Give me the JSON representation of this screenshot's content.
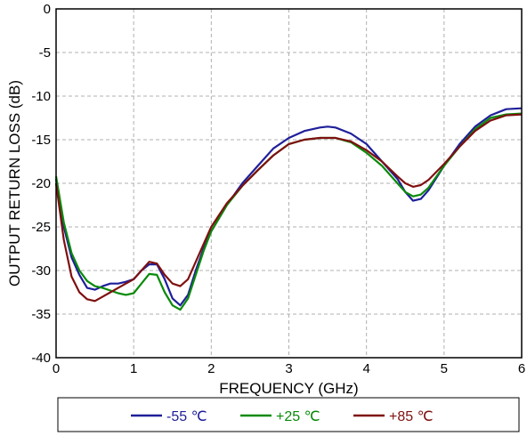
{
  "chart_data": {
    "type": "line",
    "xlabel": "FREQUENCY (GHz)",
    "ylabel": "OUTPUT RETURN LOSS (dB)",
    "xlim": [
      0,
      6
    ],
    "ylim": [
      -40,
      0
    ],
    "xticks": [
      0,
      1,
      2,
      3,
      4,
      5,
      6
    ],
    "yticks": [
      0,
      -5,
      -10,
      -15,
      -20,
      -25,
      -30,
      -35,
      -40
    ],
    "grid": true,
    "legend_position": "bottom",
    "series": [
      {
        "name": "-55 ℃",
        "color": "#1f1f9a",
        "x": [
          0,
          0.1,
          0.2,
          0.3,
          0.4,
          0.5,
          0.6,
          0.7,
          0.8,
          0.9,
          1.0,
          1.1,
          1.2,
          1.3,
          1.4,
          1.5,
          1.6,
          1.7,
          1.8,
          1.9,
          2.0,
          2.2,
          2.4,
          2.6,
          2.8,
          3.0,
          3.2,
          3.4,
          3.5,
          3.6,
          3.8,
          4.0,
          4.2,
          4.4,
          4.5,
          4.6,
          4.7,
          4.8,
          5.0,
          5.2,
          5.4,
          5.6,
          5.8,
          6.0
        ],
        "y": [
          -19.5,
          -25,
          -28.5,
          -30.5,
          -32,
          -32.2,
          -31.8,
          -31.5,
          -31.5,
          -31.3,
          -31.0,
          -30.0,
          -29.3,
          -29.3,
          -31.0,
          -33.2,
          -34.0,
          -32.8,
          -30.0,
          -27.5,
          -25.5,
          -22.5,
          -20.0,
          -18.0,
          -16.0,
          -14.8,
          -14.0,
          -13.6,
          -13.5,
          -13.6,
          -14.3,
          -15.5,
          -17.5,
          -19.5,
          -21.0,
          -22.0,
          -21.8,
          -20.8,
          -18.0,
          -15.5,
          -13.5,
          -12.2,
          -11.5,
          -11.4
        ]
      },
      {
        "name": "+25 ℃",
        "color": "#0a8a0a",
        "x": [
          0,
          0.1,
          0.2,
          0.3,
          0.4,
          0.5,
          0.6,
          0.7,
          0.8,
          0.9,
          1.0,
          1.1,
          1.2,
          1.3,
          1.4,
          1.5,
          1.6,
          1.7,
          1.8,
          1.9,
          2.0,
          2.2,
          2.4,
          2.6,
          2.8,
          3.0,
          3.2,
          3.4,
          3.5,
          3.6,
          3.8,
          4.0,
          4.2,
          4.4,
          4.5,
          4.6,
          4.7,
          4.8,
          5.0,
          5.2,
          5.4,
          5.6,
          5.8,
          6.0
        ],
        "y": [
          -19.2,
          -24.5,
          -28.0,
          -30.0,
          -31.2,
          -31.8,
          -32.0,
          -32.3,
          -32.6,
          -32.8,
          -32.6,
          -31.5,
          -30.4,
          -30.5,
          -32.5,
          -34.0,
          -34.5,
          -33.2,
          -30.5,
          -27.8,
          -25.5,
          -22.5,
          -20.3,
          -18.5,
          -16.8,
          -15.5,
          -15.0,
          -14.8,
          -14.8,
          -14.8,
          -15.3,
          -16.5,
          -18.0,
          -20.0,
          -21.0,
          -21.5,
          -21.3,
          -20.5,
          -18.0,
          -15.8,
          -13.8,
          -12.5,
          -12.1,
          -12.0
        ]
      },
      {
        "name": "+85 ℃",
        "color": "#7f1010",
        "x": [
          0,
          0.1,
          0.2,
          0.3,
          0.4,
          0.5,
          0.6,
          0.7,
          0.8,
          0.9,
          1.0,
          1.1,
          1.2,
          1.3,
          1.4,
          1.5,
          1.6,
          1.7,
          1.8,
          1.9,
          2.0,
          2.2,
          2.4,
          2.6,
          2.8,
          3.0,
          3.2,
          3.4,
          3.5,
          3.6,
          3.8,
          4.0,
          4.2,
          4.4,
          4.5,
          4.6,
          4.7,
          4.8,
          5.0,
          5.2,
          5.4,
          5.6,
          5.8,
          6.0
        ],
        "y": [
          -20.0,
          -26.5,
          -30.7,
          -32.5,
          -33.3,
          -33.5,
          -33.0,
          -32.5,
          -32.0,
          -31.5,
          -31.0,
          -30.0,
          -29.0,
          -29.2,
          -30.5,
          -31.5,
          -31.8,
          -31.0,
          -29.0,
          -27.0,
          -25.0,
          -22.3,
          -20.3,
          -18.5,
          -16.8,
          -15.5,
          -15.0,
          -14.8,
          -14.8,
          -14.8,
          -15.2,
          -16.2,
          -17.5,
          -19.2,
          -20.0,
          -20.4,
          -20.2,
          -19.6,
          -17.8,
          -15.8,
          -14.0,
          -12.8,
          -12.2,
          -12.1
        ]
      }
    ]
  }
}
